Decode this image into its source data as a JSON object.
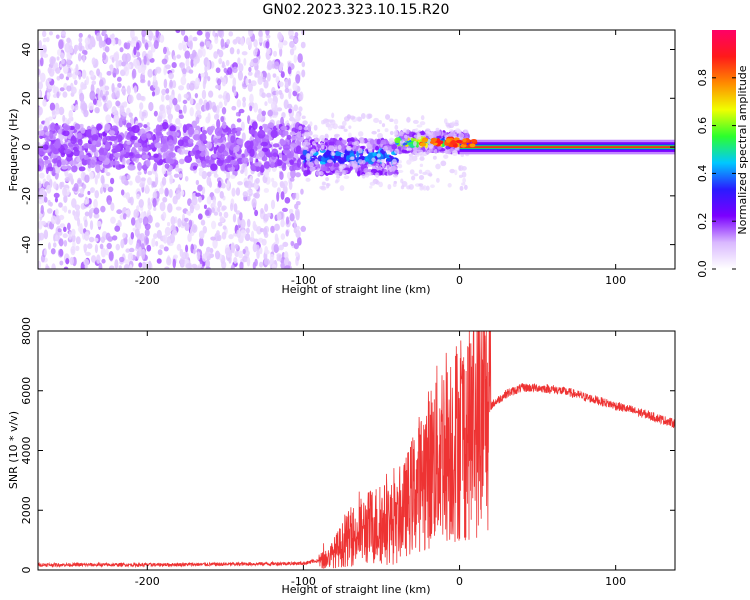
{
  "figure_title": "GN02.2023.323.10.15.R20",
  "chart_data": [
    {
      "type": "heatmap",
      "title": "GN02.2023.323.10.15.R20",
      "xlabel": "Height of straight line (km)",
      "ylabel": "Frequency (Hz)",
      "xlim": [
        -270,
        138
      ],
      "ylim": [
        -50,
        48
      ],
      "xticks": [
        -200,
        -100,
        0,
        100
      ],
      "yticks": [
        -40,
        -20,
        0,
        20,
        40
      ],
      "colorbar": {
        "label": "Normalized spectral amplitude",
        "range": [
          0,
          1
        ],
        "ticks": [
          0.0,
          0.2,
          0.4,
          0.6,
          0.8
        ],
        "tick_labels": [
          "0.0",
          "0.2",
          "0.4",
          "0.6",
          "0.8"
        ],
        "colormap": [
          "#ffffff",
          "#d9b8ff",
          "#7b00ff",
          "#2a1bff",
          "#00c8ff",
          "#2cff2c",
          "#f0ff00",
          "#ff8a00",
          "#ff1a1a",
          "#ff0066"
        ]
      },
      "regions": [
        {
          "x": [
            -270,
            -100
          ],
          "description": "broadband noise",
          "amplitude": 0.05
        },
        {
          "x": [
            -100,
            -40
          ],
          "center_freq": -4,
          "amplitude": 0.3
        },
        {
          "x": [
            -40,
            5
          ],
          "center_freq": 2,
          "amplitude": 0.6
        },
        {
          "x": [
            5,
            138
          ],
          "center_freq": 0,
          "amplitude": 0.9
        }
      ]
    },
    {
      "type": "line",
      "xlabel": "Height of straight line (km)",
      "ylabel": "SNR (10 * v/v)",
      "xlim": [
        -270,
        138
      ],
      "ylim": [
        0,
        8000
      ],
      "xticks": [
        -200,
        -100,
        0,
        100
      ],
      "yticks": [
        0,
        2000,
        4000,
        6000,
        8000
      ],
      "series": [
        {
          "name": "SNR",
          "color": "#ee3333",
          "x": [
            -270,
            -200,
            -150,
            -100,
            -85,
            -70,
            -55,
            -40,
            -25,
            -10,
            0,
            10,
            20,
            30,
            40,
            50,
            60,
            70,
            80,
            90,
            100,
            110,
            120,
            138
          ],
          "values": [
            150,
            150,
            170,
            200,
            350,
            1100,
            1500,
            1600,
            3000,
            4200,
            4400,
            4900,
            5500,
            5900,
            6100,
            6100,
            6050,
            5950,
            5800,
            5650,
            5500,
            5350,
            5200,
            4900
          ]
        }
      ]
    }
  ]
}
